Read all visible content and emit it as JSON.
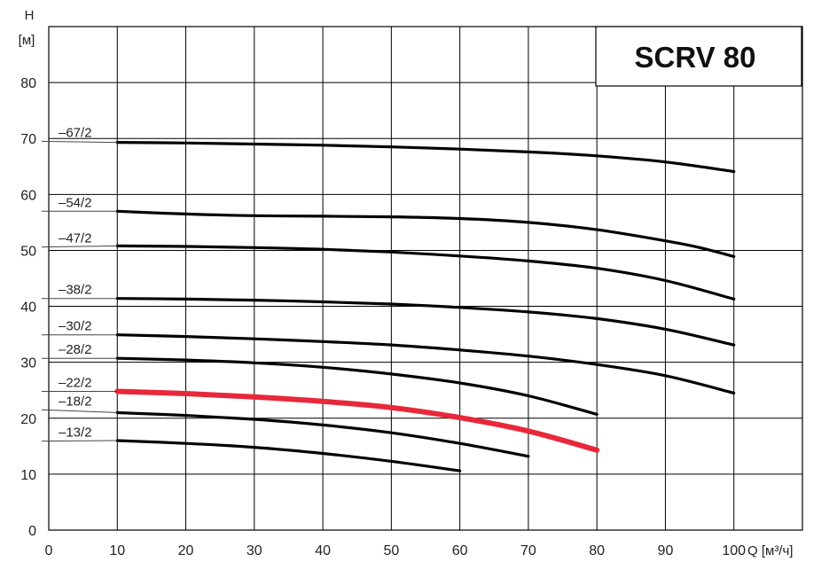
{
  "chart_data": {
    "type": "line",
    "title": "SCRV 80",
    "ylabel_line1": "H",
    "ylabel_line2": "[м]",
    "xlabel": "Q [м³/ч]",
    "xlim": [
      0,
      110
    ],
    "ylim": [
      0,
      90
    ],
    "xticks": [
      0,
      10,
      20,
      30,
      40,
      50,
      60,
      70,
      80,
      90,
      100
    ],
    "yticks": [
      0,
      10,
      20,
      30,
      40,
      50,
      60,
      70,
      80
    ],
    "grid": true,
    "highlight_color": "#e8283a",
    "line_color": "#000000",
    "series": [
      {
        "name": "–67/2",
        "highlight": false,
        "label_y": 69.5,
        "x": [
          10,
          20,
          30,
          40,
          50,
          60,
          70,
          80,
          90,
          100
        ],
        "y": [
          69.3,
          69.2,
          69.0,
          68.8,
          68.5,
          68.1,
          67.6,
          66.9,
          65.8,
          64.1
        ]
      },
      {
        "name": "–54/2",
        "highlight": false,
        "label_y": 57.0,
        "x": [
          10,
          20,
          30,
          40,
          50,
          60,
          70,
          80,
          90,
          95,
          100
        ],
        "y": [
          57.0,
          56.5,
          56.2,
          56.1,
          56.0,
          55.7,
          55.0,
          53.7,
          51.7,
          50.5,
          48.9
        ]
      },
      {
        "name": "–47/2",
        "highlight": false,
        "label_y": 50.6,
        "x": [
          10,
          20,
          30,
          40,
          50,
          60,
          70,
          80,
          90,
          100
        ],
        "y": [
          50.8,
          50.7,
          50.5,
          50.2,
          49.7,
          49.0,
          48.1,
          46.8,
          44.6,
          41.3
        ]
      },
      {
        "name": "–38/2",
        "highlight": false,
        "label_y": 41.4,
        "x": [
          10,
          20,
          30,
          40,
          50,
          60,
          70,
          80,
          90,
          100
        ],
        "y": [
          41.4,
          41.3,
          41.1,
          40.8,
          40.4,
          39.8,
          39.0,
          37.8,
          35.9,
          33.1
        ]
      },
      {
        "name": "–30/2",
        "highlight": false,
        "label_y": 34.9,
        "x": [
          10,
          20,
          30,
          40,
          50,
          60,
          70,
          80,
          90,
          100
        ],
        "y": [
          34.9,
          34.6,
          34.2,
          33.7,
          33.1,
          32.2,
          31.1,
          29.6,
          27.6,
          24.5
        ]
      },
      {
        "name": "–28/2",
        "highlight": false,
        "label_y": 30.7,
        "x": [
          10,
          20,
          30,
          40,
          50,
          60,
          70,
          80
        ],
        "y": [
          30.7,
          30.4,
          29.9,
          29.1,
          27.9,
          26.3,
          24.0,
          20.7
        ]
      },
      {
        "name": "–22/2",
        "highlight": true,
        "label_y": 24.8,
        "x": [
          10,
          20,
          30,
          40,
          50,
          60,
          70,
          80
        ],
        "y": [
          24.8,
          24.4,
          23.8,
          23.0,
          21.9,
          20.1,
          17.7,
          14.3
        ]
      },
      {
        "name": "–18/2",
        "highlight": false,
        "label_y": 21.5,
        "x": [
          10,
          20,
          30,
          40,
          50,
          60,
          70
        ],
        "y": [
          21.0,
          20.5,
          19.8,
          18.8,
          17.4,
          15.5,
          13.2
        ]
      },
      {
        "name": "–13/2",
        "highlight": false,
        "label_y": 15.9,
        "x": [
          10,
          20,
          30,
          40,
          50,
          60
        ],
        "y": [
          16.0,
          15.5,
          14.8,
          13.7,
          12.3,
          10.6
        ]
      }
    ]
  }
}
